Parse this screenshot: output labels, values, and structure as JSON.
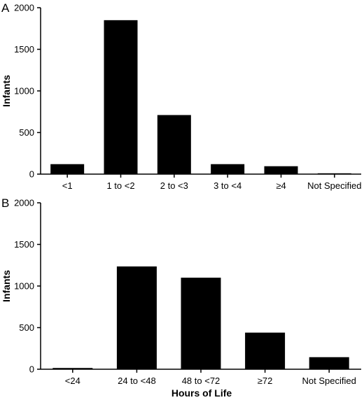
{
  "chart_data": [
    {
      "type": "bar",
      "panel_label": "A",
      "categories": [
        "<1",
        "1 to <2",
        "2 to <3",
        "3 to <4",
        "≥4",
        "Not Specified"
      ],
      "values": [
        120,
        1850,
        710,
        120,
        95,
        10
      ],
      "xlabel": "",
      "ylabel": "Infants",
      "ylim": [
        0,
        2000
      ],
      "yticks": [
        0,
        500,
        1000,
        1500,
        2000
      ],
      "grid": false,
      "bar_color": "#000000"
    },
    {
      "type": "bar",
      "panel_label": "B",
      "categories": [
        "<24",
        "24 to <48",
        "48 to <72",
        "≥72",
        "Not Specified"
      ],
      "values": [
        15,
        1235,
        1100,
        440,
        145
      ],
      "xlabel": "Hours of Life",
      "ylabel": "Infants",
      "ylim": [
        0,
        2000
      ],
      "yticks": [
        0,
        500,
        1000,
        1500,
        2000
      ],
      "grid": false,
      "bar_color": "#000000"
    }
  ]
}
